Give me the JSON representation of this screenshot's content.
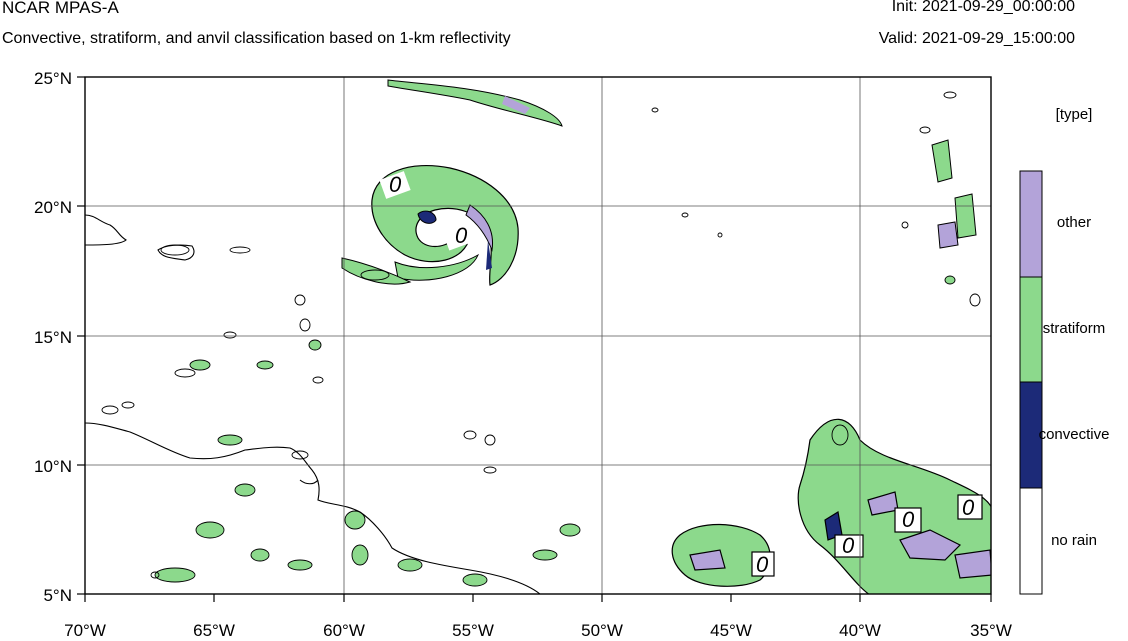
{
  "header": {
    "model": "NCAR MPAS-A",
    "description": "Convective, stratiform, and anvil classification based on 1-km reflectivity",
    "init": "Init: 2021-09-29_00:00:00",
    "valid": "Valid: 2021-09-29_15:00:00"
  },
  "map": {
    "lon_range": [
      -70,
      -35
    ],
    "lat_range": [
      5,
      25
    ],
    "x_ticks": [
      "70°W",
      "65°W",
      "60°W",
      "55°W",
      "50°W",
      "45°W",
      "40°W",
      "35°W"
    ],
    "y_ticks": [
      "25°N",
      "20°N",
      "15°N",
      "10°N",
      "5°N"
    ],
    "contour_label": "0"
  },
  "legend": {
    "title": "[type]",
    "entries": [
      {
        "label": "other",
        "color": "#b3a3d9"
      },
      {
        "label": "stratiform",
        "color": "#8cd98c"
      },
      {
        "label": "convective",
        "color": "#1c2a78"
      },
      {
        "label": "no rain",
        "color": "#ffffff"
      }
    ]
  }
}
